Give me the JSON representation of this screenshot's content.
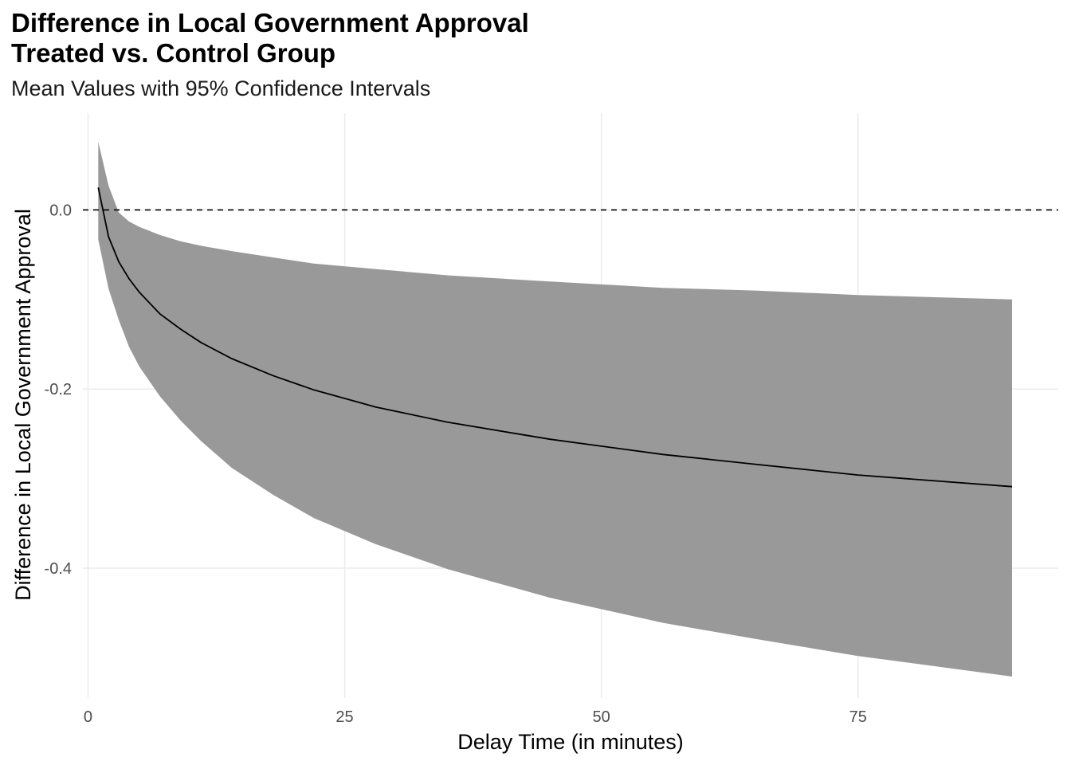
{
  "chart_data": {
    "type": "line",
    "title_line1": "Difference in Local Government Approval",
    "title_line2": "Treated vs. Control Group",
    "subtitle": "Mean Values with 95% Confidence Intervals",
    "xlabel": "Delay Time (in minutes)",
    "ylabel": "Difference in Local Government Approval",
    "xlim": [
      -0.5,
      94.5
    ],
    "ylim": [
      -0.545,
      0.108
    ],
    "x_ticks": [
      0,
      25,
      50,
      75
    ],
    "x_tick_labels": [
      "0",
      "25",
      "50",
      "75"
    ],
    "y_ticks": [
      0.0,
      -0.2,
      -0.4
    ],
    "y_tick_labels": [
      "0.0",
      "-0.2",
      "-0.4"
    ],
    "grid": true,
    "reference_line": {
      "y": 0,
      "style": "dashed",
      "color": "#000000"
    },
    "series": [
      {
        "x": [
          1,
          2,
          3,
          4,
          5,
          7,
          9,
          11,
          14,
          18,
          22,
          28,
          35,
          45,
          56,
          65,
          75,
          90
        ],
        "y": [
          0.025,
          -0.03,
          -0.058,
          -0.077,
          -0.092,
          -0.116,
          -0.133,
          -0.148,
          -0.166,
          -0.185,
          -0.201,
          -0.22,
          -0.237,
          -0.256,
          -0.273,
          -0.284,
          -0.296,
          -0.309
        ],
        "lower": [
          -0.033,
          -0.088,
          -0.123,
          -0.153,
          -0.175,
          -0.208,
          -0.235,
          -0.258,
          -0.288,
          -0.318,
          -0.344,
          -0.373,
          -0.401,
          -0.433,
          -0.461,
          -0.479,
          -0.498,
          -0.521
        ],
        "upper": [
          0.076,
          0.027,
          -0.003,
          -0.013,
          -0.019,
          -0.028,
          -0.035,
          -0.04,
          -0.046,
          -0.053,
          -0.06,
          -0.066,
          -0.073,
          -0.08,
          -0.087,
          -0.09,
          -0.095,
          -0.1
        ],
        "line_color": "#000000",
        "ribbon_color": "#999999"
      }
    ]
  }
}
